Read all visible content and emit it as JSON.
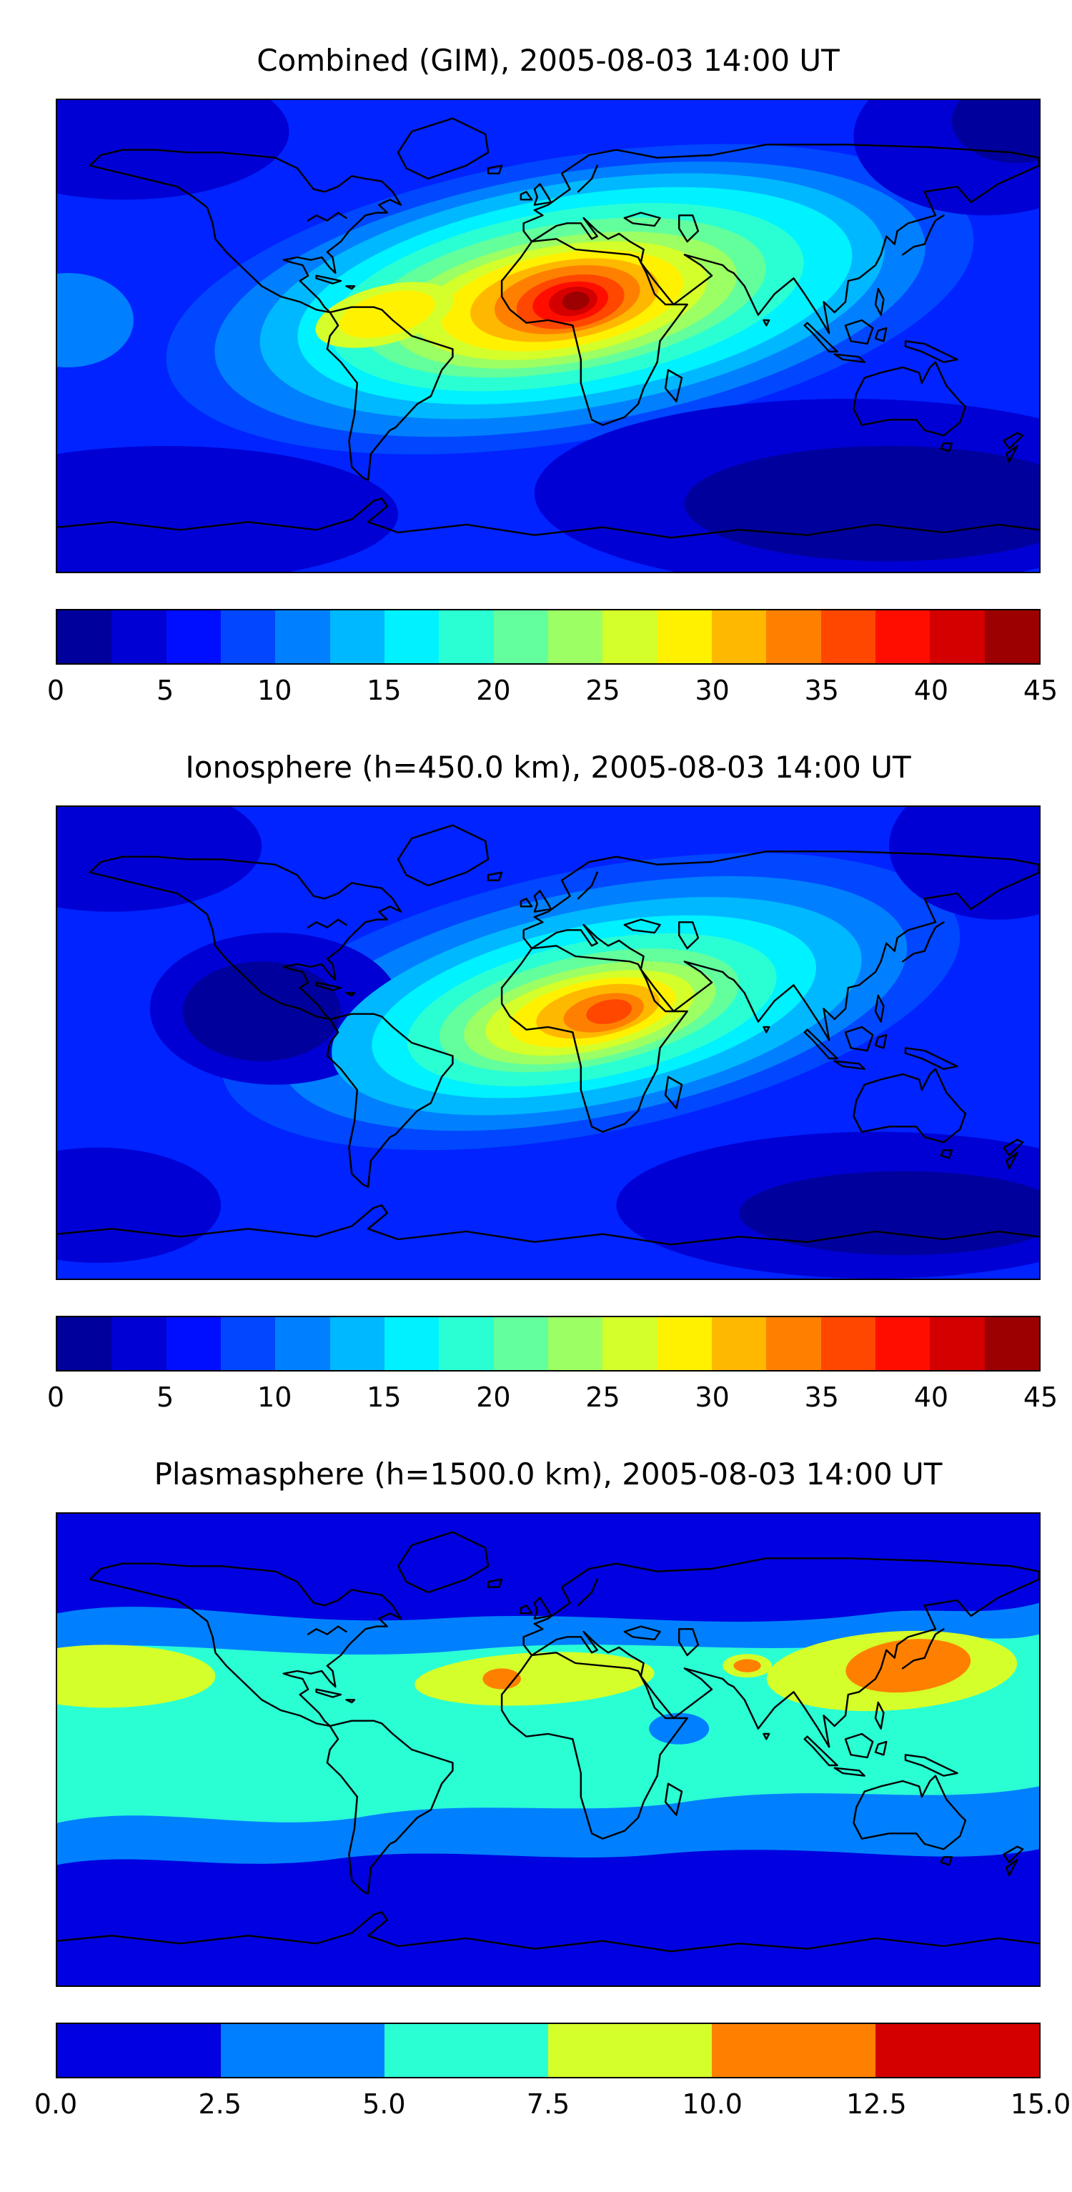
{
  "page": {
    "background": "#ffffff",
    "description": "Three stacked global electron-content maps (equirectangular world maps with coastlines), each with a horizontal jet colorbar below"
  },
  "figures": [
    {
      "id": "combined-gim",
      "title": "Combined (GIM), 2005-08-03 14:00 UT",
      "colorbar": {
        "min": 0,
        "max": 45,
        "ticks": [
          "0",
          "5",
          "10",
          "15",
          "20",
          "25",
          "30",
          "35",
          "40",
          "45"
        ],
        "colors": [
          "#00009c",
          "#0000d4",
          "#000eff",
          "#0047ff",
          "#0080ff",
          "#00b8ff",
          "#00f1ff",
          "#2affd4",
          "#63ff9c",
          "#9cff63",
          "#d4ff2a",
          "#fff100",
          "#ffb800",
          "#ff8000",
          "#ff4700",
          "#ff0e00",
          "#d40000",
          "#9c0000"
        ]
      }
    },
    {
      "id": "ionosphere",
      "title": "Ionosphere (h=450.0 km), 2005-08-03 14:00 UT",
      "colorbar": {
        "min": 0,
        "max": 45,
        "ticks": [
          "0",
          "5",
          "10",
          "15",
          "20",
          "25",
          "30",
          "35",
          "40",
          "45"
        ],
        "colors": [
          "#00009c",
          "#0000d4",
          "#000eff",
          "#0047ff",
          "#0080ff",
          "#00b8ff",
          "#00f1ff",
          "#2affd4",
          "#63ff9c",
          "#9cff63",
          "#d4ff2a",
          "#fff100",
          "#ffb800",
          "#ff8000",
          "#ff4700",
          "#ff0e00",
          "#d40000",
          "#9c0000"
        ]
      }
    },
    {
      "id": "plasmasphere",
      "title": "Plasmasphere (h=1500.0 km), 2005-08-03 14:00 UT",
      "colorbar": {
        "min": 0,
        "max": 15,
        "ticks": [
          "0.0",
          "2.5",
          "5.0",
          "7.5",
          "10.0",
          "12.5",
          "15.0"
        ],
        "colors": [
          "#0000e0",
          "#0080ff",
          "#2affd4",
          "#d4ff2a",
          "#ff8000",
          "#d40000"
        ]
      }
    }
  ],
  "chart_data": [
    {
      "type": "heatmap",
      "title": "Combined (GIM), 2005-08-03 14:00 UT",
      "map": "equirectangular world map with black coastlines, no axis ticks",
      "lon_range": [
        -180,
        180
      ],
      "lat_range": [
        -90,
        90
      ],
      "value_range": [
        0,
        45
      ],
      "colormap": "jet (discrete filled contours, step 2.5)",
      "colorbar_ticks": [
        0,
        5,
        10,
        15,
        20,
        25,
        30,
        35,
        40,
        45
      ],
      "legend_position": "horizontal colorbar below map",
      "features": [
        {
          "feature": "peak",
          "lon": 10,
          "lat": 12,
          "value": 44,
          "note": "dark-red maximum over north-central Africa"
        },
        {
          "feature": "enhanced-crest",
          "value_range": [
            25,
            40
          ],
          "note": "yellow-orange band tilted WSW-ENE from northern South America across Africa to Arabia"
        },
        {
          "feature": "mid-latitude-halo",
          "value_range": [
            15,
            25
          ],
          "note": "cyan-green halo reaching Central America, Europe and India"
        },
        {
          "feature": "background",
          "value_range": [
            3,
            10
          ],
          "note": "blue low values over Pacific and high latitudes"
        },
        {
          "feature": "minima",
          "value_range": [
            0,
            5
          ],
          "note": "darkest blue near Bering Sea corner and southern oceans southeast of Australia"
        }
      ]
    },
    {
      "type": "heatmap",
      "title": "Ionosphere (h=450.0 km), 2005-08-03 14:00 UT",
      "map": "equirectangular world map with black coastlines, no axis ticks",
      "lon_range": [
        -180,
        180
      ],
      "lat_range": [
        -90,
        90
      ],
      "value_range": [
        0,
        45
      ],
      "colormap": "jet (discrete filled contours, step 2.5)",
      "colorbar_ticks": [
        0,
        5,
        10,
        15,
        20,
        25,
        30,
        35,
        40,
        45
      ],
      "legend_position": "horizontal colorbar below map",
      "features": [
        {
          "feature": "peak",
          "lon": 20,
          "lat": 10,
          "value": 40,
          "note": "red-orange maximum over central Africa, weaker and smaller than combined map"
        },
        {
          "feature": "enhanced-crest",
          "value_range": [
            22,
            35
          ],
          "note": "yellow band over Africa extending toward Arabia and northern South America"
        },
        {
          "feature": "mid-latitude-halo",
          "value_range": [
            12,
            22
          ],
          "note": "cyan-green halo over Atlantic, South America and India"
        },
        {
          "feature": "minimum-pool",
          "value_range": [
            0,
            5
          ],
          "note": "large dark-blue pool in eastern Pacific west of Central America"
        },
        {
          "feature": "background",
          "value_range": [
            3,
            10
          ],
          "note": "blue elsewhere; darker cells at bottom-right and top corners"
        }
      ]
    },
    {
      "type": "heatmap",
      "title": "Plasmasphere (h=1500.0 km), 2005-08-03 14:00 UT",
      "map": "equirectangular world map with black coastlines, no axis ticks",
      "lon_range": [
        -180,
        180
      ],
      "lat_range": [
        -90,
        90
      ],
      "value_range": [
        0,
        15
      ],
      "colormap": "jet (discrete filled contours, step 2.5)",
      "colorbar_ticks": [
        0,
        2.5,
        5.0,
        7.5,
        10.0,
        12.5,
        15.0
      ],
      "legend_position": "horizontal colorbar below map",
      "features": [
        {
          "feature": "polar-background",
          "value_range": [
            0,
            2.5
          ],
          "note": "uniform blue poleward of about ±45° latitude"
        },
        {
          "feature": "mid-latitude-band",
          "value_range": [
            2.5,
            5
          ],
          "note": "azure band encircling the globe"
        },
        {
          "feature": "equatorial-band",
          "value_range": [
            5,
            7.5
          ],
          "note": "turquoise band across low latitudes"
        },
        {
          "feature": "crests",
          "value_range": [
            7.5,
            10
          ],
          "note": "yellow-green patches at left edge (central Pacific), over Africa/Atlantic and a large one over Southeast Asia"
        },
        {
          "feature": "maxima",
          "value_range": [
            10,
            12.5
          ],
          "note": "orange blobs over West Africa and a large one over East Asia/Japan"
        },
        {
          "feature": "local-dip",
          "value_range": [
            2.5,
            5
          ],
          "note": "small azure oval over the Indian Ocean inside the turquoise band"
        }
      ]
    }
  ]
}
